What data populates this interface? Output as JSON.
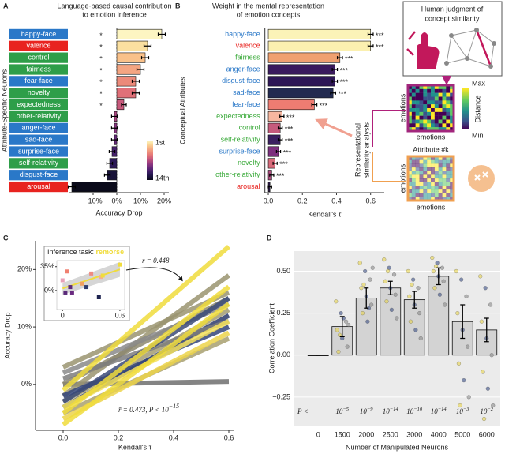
{
  "chart_data": [
    {
      "type": "bar",
      "orientation": "horizontal",
      "panel": "A",
      "title_lines": [
        "Language-based causal contribution",
        "to emotion inference"
      ],
      "x_label": "Accuracy Drop",
      "y_label": "Attribute-Specific Neurons",
      "categories": [
        "happy-face",
        "valence",
        "control",
        "fairness",
        "fear-face",
        "novelty",
        "expectedness",
        "other-relativity",
        "anger-face",
        "sad-face",
        "surprise-face",
        "self-relativity",
        "disgust-face",
        "arousal"
      ],
      "values": [
        19,
        13,
        12,
        10,
        8,
        8,
        3,
        -1,
        -1,
        -1,
        -2,
        -3,
        -4,
        -19
      ],
      "errors": [
        1.5,
        1.5,
        1.5,
        1.5,
        1.5,
        1.5,
        1,
        1.2,
        1.2,
        1.2,
        1.2,
        1.2,
        1.2,
        1.5
      ],
      "significance": [
        "*",
        "*",
        "*",
        "*",
        "*",
        "*",
        "*",
        null,
        null,
        null,
        null,
        null,
        null,
        null
      ],
      "colors": [
        "#fdf5c2",
        "#fbe0a0",
        "#f9c18a",
        "#f4a582",
        "#ec8a7a",
        "#e07078",
        "#c85a7c",
        "#a8457f",
        "#873580",
        "#65297a",
        "#45206a",
        "#2b1857",
        "#181238",
        "#0a0a1a"
      ],
      "label_colors": [
        "#2a78c8",
        "#e8231f",
        "#2e9e49",
        "#2e9e49",
        "#2a78c8",
        "#2e9e49",
        "#2e9e49",
        "#2e9e49",
        "#2a78c8",
        "#2a78c8",
        "#2a78c8",
        "#2e9e49",
        "#2a78c8",
        "#e8231f"
      ],
      "label_style": "box",
      "zero_line": true,
      "colorbar_labels": [
        "1st",
        "14th"
      ],
      "xlim": [
        -20,
        22
      ],
      "xticks": [
        {
          "value": -10,
          "label": "−10%"
        },
        {
          "value": 0,
          "label": "0%"
        },
        {
          "value": 10,
          "label": "10%"
        },
        {
          "value": 20,
          "label": "20%"
        }
      ]
    },
    {
      "type": "bar",
      "orientation": "horizontal",
      "panel": "B",
      "title_lines": [
        "Weight in the mental representation",
        "of emotion concepts"
      ],
      "x_label": "Kendall's τ",
      "y_label": "Conceptual Attributes",
      "categories": [
        "happy-face",
        "valence",
        "fairness",
        "anger-face",
        "disgust-face",
        "sad-face",
        "fear-face",
        "expectedness",
        "control",
        "self-relativity",
        "surprise-face",
        "novelty",
        "other-relativity",
        "arousal"
      ],
      "values": [
        0.6,
        0.6,
        0.42,
        0.39,
        0.39,
        0.38,
        0.27,
        0.08,
        0.07,
        0.07,
        0.06,
        0.04,
        0.02,
        0.01
      ],
      "errors": [
        0.015,
        0.015,
        0.015,
        0.015,
        0.015,
        0.015,
        0.015,
        0.012,
        0.012,
        0.012,
        0.012,
        0.012,
        0.012,
        0.01
      ],
      "significance": [
        "***",
        "***",
        "***",
        "***",
        "***",
        "***",
        "***",
        "***",
        "***",
        "***",
        "***",
        "***",
        "***",
        null
      ],
      "colors": [
        "#fbf3b8",
        "#fbf0b0",
        "#f0a070",
        "#3a1a5e",
        "#2d1656",
        "#222a50",
        "#ee7c72",
        "#f7b7a0",
        "#c65a7c",
        "#3b1f60",
        "#7d2f7e",
        "#d86a7a",
        "#b04c80",
        "#2a1a45"
      ],
      "label_colors": [
        "#2a78c8",
        "#e8231f",
        "#3aaa3a",
        "#2a78c8",
        "#2a78c8",
        "#2a78c8",
        "#2a78c8",
        "#3aaa3a",
        "#3aaa3a",
        "#3aaa3a",
        "#2a78c8",
        "#3aaa3a",
        "#3aaa3a",
        "#e8231f"
      ],
      "label_style": "text",
      "xlim": [
        -0.02,
        0.68
      ],
      "xticks": [
        {
          "value": 0,
          "label": "0.0"
        },
        0.2,
        0.4,
        0.6
      ]
    },
    {
      "type": "line",
      "panel": "C",
      "x_label": "Kendall's τ",
      "y_label": "Accuracy Drop",
      "x": [
        0,
        0.6
      ],
      "series": [
        {
          "color": "#6e6e6e",
          "values": [
            0,
            0.5
          ]
        },
        {
          "color": "#9a9470",
          "values": [
            -2,
            19
          ]
        },
        {
          "color": "#8c876e",
          "values": [
            0,
            15
          ]
        },
        {
          "color": "#a39c72",
          "values": [
            -3,
            13
          ]
        },
        {
          "color": "#2b3a6b",
          "values": [
            -4,
            12
          ]
        },
        {
          "color": "#34457a",
          "values": [
            -2,
            10
          ]
        },
        {
          "color": "#7d7d7d",
          "values": [
            1,
            11
          ]
        },
        {
          "color": "#8a8a8a",
          "values": [
            2,
            14
          ]
        },
        {
          "color": "#a8a070",
          "values": [
            -5,
            8
          ]
        },
        {
          "color": "#3b4a78",
          "values": [
            -3,
            15
          ]
        },
        {
          "color": "#9a9470",
          "values": [
            3,
            16
          ]
        },
        {
          "color": "#ecd44a",
          "values": [
            -6,
            9
          ]
        },
        {
          "color": "#f3e05a",
          "values": [
            -4,
            11
          ]
        },
        {
          "color": "#f0dc3c",
          "values": [
            -7,
            14
          ]
        },
        {
          "color": "#f0dc3c",
          "values": [
            -5,
            17
          ]
        },
        {
          "color": "#f0dc3c",
          "values": [
            -1,
            24
          ]
        }
      ],
      "annotation": "r̄ = 0.473, P < 10",
      "annotation_exponent": "−15",
      "xlim": [
        -0.1,
        0.62
      ],
      "ylim": [
        -8,
        25
      ],
      "xticks": [
        {
          "value": 0,
          "label": "0.0"
        },
        0.2,
        0.4,
        0.6
      ],
      "yticks": [
        {
          "value": 0,
          "label": "0%"
        },
        {
          "value": 10,
          "label": "10%"
        },
        {
          "value": 20,
          "label": "20%"
        }
      ]
    },
    {
      "type": "scatter",
      "title": "Inference task: ",
      "title_highlight": "remorse",
      "highlight_color": "#f0dc3c",
      "annotation": "r = 0.448",
      "x": [
        0,
        0.03,
        0.05,
        0.08,
        0.1,
        0.2,
        0.25,
        0.3,
        0.38,
        0.4,
        0.42,
        0.6
      ],
      "y": [
        15,
        -3,
        28,
        5,
        -3,
        10,
        5,
        25,
        -10,
        20,
        22,
        38
      ],
      "point_colors": [
        "#e8a0b8",
        "#5a2a7a",
        "#f08070",
        "#5a2a7a",
        "#6a2a80",
        "#f0a060",
        "#2b3a6b",
        "#f08a80",
        "#1e2450",
        "#f5b090",
        "#f0dc3c",
        "#f0dc3c"
      ],
      "fit": {
        "x": [
          0,
          0.6
        ],
        "y": [
          3,
          31
        ],
        "lower": [
          -6,
          20
        ],
        "upper": [
          11,
          42
        ]
      },
      "xlim": [
        -0.06,
        0.65
      ],
      "ylim": [
        -28,
        44
      ],
      "xticks": [
        0,
        0.6
      ],
      "yticks": [
        {
          "value": 0,
          "label": "0%"
        },
        {
          "value": 35,
          "label": "35%"
        }
      ]
    },
    {
      "type": "bar",
      "orientation": "vertical",
      "panel": "D",
      "x_label": "Number of Manipulated Neurons",
      "y_label": "Correlation Coefficient",
      "categories": [
        "0",
        "1500",
        "2000",
        "2500",
        "3000",
        "4000",
        "5000",
        "6000"
      ],
      "values": [
        0,
        0.17,
        0.34,
        0.4,
        0.33,
        0.47,
        0.2,
        0.15
      ],
      "errors": [
        0,
        0.06,
        0.06,
        0.04,
        0.05,
        0.05,
        0.1,
        0.07
      ],
      "points": [
        null,
        [
          0.32,
          0.25,
          0.2,
          0.15,
          0.1,
          0.05,
          0.02,
          0.22,
          0.18,
          0.12
        ],
        [
          0.55,
          0.5,
          0.45,
          0.4,
          0.35,
          0.3,
          0.25,
          0.2,
          0.52,
          0.42,
          0.28
        ],
        [
          0.57,
          0.52,
          0.48,
          0.44,
          0.4,
          0.36,
          0.32,
          0.27,
          0.22,
          0.5
        ],
        [
          0.5,
          0.45,
          0.4,
          0.35,
          0.3,
          0.25,
          0.2,
          0.15,
          0.1,
          0.42
        ],
        [
          0.58,
          0.55,
          0.52,
          0.5,
          0.47,
          0.44,
          0.4,
          0.36,
          0.3,
          0.53
        ],
        [
          0.5,
          0.45,
          0.35,
          0.25,
          0.15,
          0.05,
          -0.05,
          -0.15,
          -0.25,
          -0.3
        ],
        [
          0.47,
          0.4,
          0.3,
          0.2,
          0.1,
          0,
          -0.1,
          -0.2,
          -0.3,
          -0.38
        ]
      ],
      "point_colors": [
        "#e8d44d",
        "#3b4f86",
        "#8a8a8a"
      ],
      "bar_color": "#d3d3d3",
      "grid": true,
      "p_prefix": "P <",
      "p_labels": [
        null,
        {
          "base": "10",
          "exponent": "−5"
        },
        {
          "base": "10",
          "exponent": "−9"
        },
        {
          "base": "10",
          "exponent": "−14"
        },
        {
          "base": "10",
          "exponent": "−10"
        },
        {
          "base": "10",
          "exponent": "−14"
        },
        {
          "base": "10",
          "exponent": "−3"
        },
        {
          "base": "10",
          "exponent": "−2"
        }
      ],
      "ylim": [
        -0.42,
        0.62
      ],
      "yticks": [
        {
          "value": -0.25,
          "label": "−0.25"
        },
        {
          "value": 0,
          "label": "0.00"
        },
        0.25,
        {
          "value": 0.5,
          "label": "0.50"
        }
      ]
    }
  ],
  "diagram": {
    "title_lines": [
      "Human judgment of",
      "concept similarity"
    ],
    "matrix_label": "emotions",
    "colorbar_max": "Max",
    "colorbar_min": "Min",
    "colorbar_title": "Distance",
    "rsa_lines": [
      "Representational",
      "similarity analysis"
    ],
    "attribute_label": "Attribute #k"
  }
}
